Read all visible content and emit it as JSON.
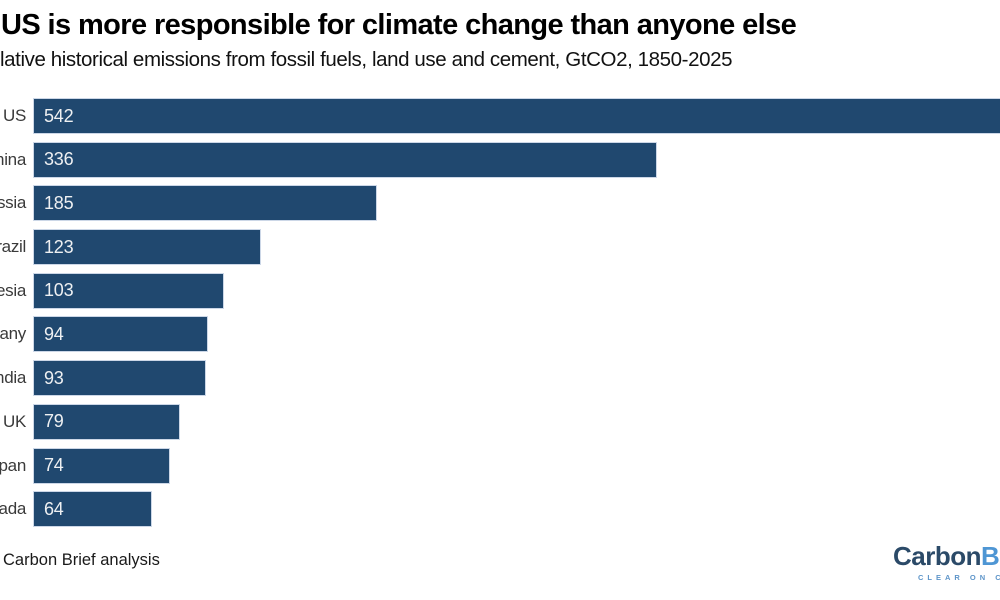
{
  "header": {
    "title": "US is more responsible for climate change than anyone else",
    "subtitle": "lative historical emissions from fossil fuels, land use and cement, GtCO2, 1850-2025"
  },
  "chart_data": {
    "type": "bar",
    "orientation": "horizontal",
    "title": "US is more responsible for climate change than anyone else",
    "subtitle": "lative historical emissions from fossil fuels, land use and cement, GtCO2, 1850-2025",
    "unit": "GtCO2",
    "categories": [
      "US",
      "China",
      "Russia",
      "Brazil",
      "Indonesia",
      "Germany",
      "India",
      "UK",
      "Japan",
      "Canada"
    ],
    "values": [
      542,
      336,
      185,
      123,
      103,
      94,
      93,
      79,
      74,
      64
    ],
    "value_labels_shown": true,
    "xlim": [
      0,
      542
    ],
    "grid": false,
    "legend": false,
    "bar_color": "#20486F",
    "bar_outline_color": "#ccd7e7",
    "value_label_color": "#eef0f2"
  },
  "footer": {
    "source": "Carbon Brief analysis",
    "logo": {
      "word_dark": "Carbon",
      "word_blue": "B",
      "tagline": "CLEAR ON C"
    }
  },
  "colors": {
    "background": "#ffffff",
    "title": "#000000",
    "subtitle": "#111111",
    "axis_label": "#3a3a3a",
    "logo_dark": "#2B4A68",
    "logo_blue": "#4E96D4",
    "logo_tagline": "#5E95C9"
  }
}
